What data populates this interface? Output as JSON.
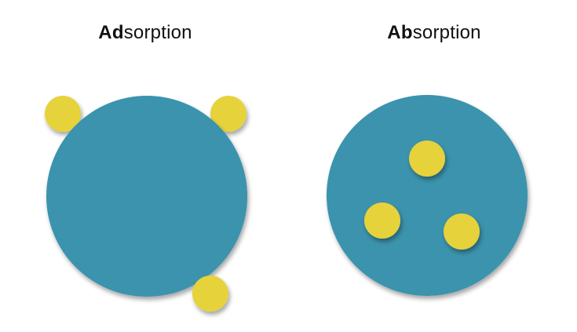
{
  "panels": {
    "adsorption": {
      "title_bold": "Ad",
      "title_rest": "sorption"
    },
    "absorption": {
      "title_bold": "Ab",
      "title_rest": "sorption"
    }
  },
  "colors": {
    "large_particle": "#3a93ad",
    "small_particle": "#e6d23a"
  }
}
